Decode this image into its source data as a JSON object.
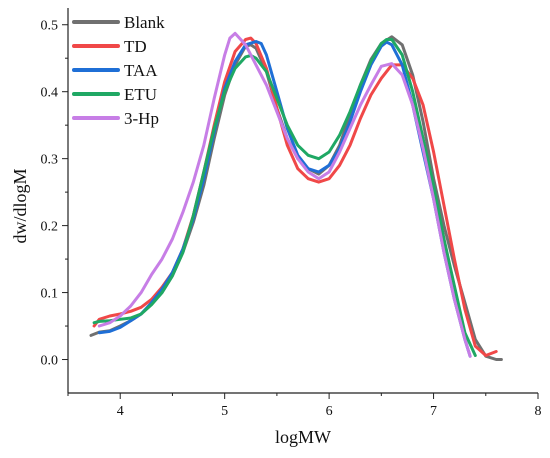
{
  "chart_data": {
    "type": "line",
    "xlabel": "logMW",
    "ylabel": "dw/dlogM",
    "xlim": [
      3.5,
      8.0
    ],
    "ylim": [
      -0.05,
      0.525
    ],
    "x_ticks": [
      4,
      5,
      6,
      7,
      8
    ],
    "y_ticks": [
      0.0,
      0.1,
      0.2,
      0.3,
      0.4,
      0.5
    ],
    "x_tick_labels": [
      "4",
      "5",
      "6",
      "7",
      "8"
    ],
    "y_tick_labels": [
      "0.0",
      "0.1",
      "0.2",
      "0.3",
      "0.4",
      "0.5"
    ],
    "grid": false,
    "legend_position": "top-left",
    "series": [
      {
        "name": "Blank",
        "color": "#707070",
        "x": [
          3.72,
          3.8,
          3.9,
          4.0,
          4.1,
          4.2,
          4.3,
          4.4,
          4.5,
          4.6,
          4.7,
          4.8,
          4.9,
          5.0,
          5.1,
          5.2,
          5.25,
          5.3,
          5.4,
          5.5,
          5.6,
          5.7,
          5.8,
          5.9,
          6.0,
          6.1,
          6.2,
          6.3,
          6.4,
          6.5,
          6.6,
          6.7,
          6.8,
          6.9,
          7.0,
          7.1,
          7.2,
          7.3,
          7.4,
          7.5,
          7.6,
          7.65
        ],
        "y": [
          0.036,
          0.041,
          0.043,
          0.05,
          0.058,
          0.068,
          0.083,
          0.1,
          0.125,
          0.16,
          0.205,
          0.26,
          0.33,
          0.395,
          0.44,
          0.468,
          0.47,
          0.465,
          0.43,
          0.375,
          0.33,
          0.3,
          0.285,
          0.277,
          0.29,
          0.32,
          0.365,
          0.41,
          0.448,
          0.472,
          0.482,
          0.47,
          0.425,
          0.355,
          0.27,
          0.2,
          0.14,
          0.085,
          0.03,
          0.005,
          0.0,
          0.0
        ]
      },
      {
        "name": "TD",
        "color": "#f04848",
        "x": [
          3.75,
          3.8,
          3.9,
          4.0,
          4.1,
          4.2,
          4.3,
          4.4,
          4.5,
          4.6,
          4.7,
          4.8,
          4.9,
          5.0,
          5.1,
          5.2,
          5.25,
          5.3,
          5.4,
          5.5,
          5.6,
          5.7,
          5.8,
          5.9,
          6.0,
          6.1,
          6.2,
          6.3,
          6.4,
          6.5,
          6.6,
          6.7,
          6.8,
          6.9,
          7.0,
          7.1,
          7.2,
          7.3,
          7.4,
          7.5,
          7.6
        ],
        "y": [
          0.05,
          0.06,
          0.065,
          0.068,
          0.072,
          0.078,
          0.09,
          0.108,
          0.13,
          0.165,
          0.215,
          0.28,
          0.35,
          0.415,
          0.46,
          0.478,
          0.48,
          0.472,
          0.435,
          0.375,
          0.32,
          0.285,
          0.27,
          0.265,
          0.27,
          0.29,
          0.32,
          0.36,
          0.395,
          0.42,
          0.44,
          0.44,
          0.42,
          0.38,
          0.31,
          0.23,
          0.15,
          0.075,
          0.02,
          0.006,
          0.012
        ]
      },
      {
        "name": "TAA",
        "color": "#1f6fd6",
        "x": [
          3.8,
          3.9,
          4.0,
          4.1,
          4.2,
          4.3,
          4.4,
          4.5,
          4.6,
          4.7,
          4.8,
          4.9,
          5.0,
          5.1,
          5.2,
          5.3,
          5.35,
          5.4,
          5.5,
          5.6,
          5.7,
          5.8,
          5.9,
          6.0,
          6.1,
          6.2,
          6.3,
          6.4,
          6.5,
          6.55,
          6.6,
          6.7,
          6.8,
          6.9,
          7.0,
          7.1,
          7.2,
          7.3,
          7.35
        ],
        "y": [
          0.04,
          0.042,
          0.048,
          0.058,
          0.068,
          0.085,
          0.105,
          0.13,
          0.165,
          0.21,
          0.27,
          0.34,
          0.405,
          0.445,
          0.47,
          0.475,
          0.472,
          0.455,
          0.4,
          0.345,
          0.305,
          0.285,
          0.28,
          0.29,
          0.315,
          0.355,
          0.4,
          0.44,
          0.468,
          0.474,
          0.47,
          0.44,
          0.38,
          0.31,
          0.24,
          0.16,
          0.09,
          0.03,
          0.005
        ]
      },
      {
        "name": "ETU",
        "color": "#1fa864",
        "x": [
          3.75,
          3.8,
          3.9,
          4.0,
          4.1,
          4.2,
          4.3,
          4.4,
          4.5,
          4.6,
          4.7,
          4.8,
          4.9,
          5.0,
          5.1,
          5.2,
          5.25,
          5.3,
          5.4,
          5.5,
          5.6,
          5.7,
          5.8,
          5.9,
          6.0,
          6.1,
          6.2,
          6.3,
          6.4,
          6.5,
          6.55,
          6.6,
          6.7,
          6.8,
          6.9,
          7.0,
          7.1,
          7.2,
          7.3,
          7.4
        ],
        "y": [
          0.055,
          0.057,
          0.058,
          0.06,
          0.062,
          0.068,
          0.082,
          0.1,
          0.125,
          0.16,
          0.215,
          0.28,
          0.345,
          0.4,
          0.435,
          0.452,
          0.454,
          0.45,
          0.43,
          0.39,
          0.35,
          0.32,
          0.305,
          0.3,
          0.31,
          0.335,
          0.37,
          0.41,
          0.445,
          0.472,
          0.478,
          0.478,
          0.455,
          0.4,
          0.33,
          0.26,
          0.18,
          0.11,
          0.04,
          0.006
        ]
      },
      {
        "name": "3-Hp",
        "color": "#c77ee6",
        "x": [
          3.8,
          3.9,
          4.0,
          4.1,
          4.2,
          4.3,
          4.4,
          4.5,
          4.6,
          4.7,
          4.8,
          4.9,
          5.0,
          5.05,
          5.1,
          5.2,
          5.3,
          5.4,
          5.5,
          5.6,
          5.7,
          5.8,
          5.9,
          6.0,
          6.1,
          6.2,
          6.3,
          6.4,
          6.5,
          6.6,
          6.7,
          6.8,
          6.9,
          7.0,
          7.1,
          7.2,
          7.3,
          7.35
        ],
        "y": [
          0.05,
          0.055,
          0.065,
          0.08,
          0.1,
          0.127,
          0.15,
          0.18,
          0.22,
          0.265,
          0.32,
          0.39,
          0.455,
          0.48,
          0.487,
          0.47,
          0.44,
          0.41,
          0.37,
          0.33,
          0.3,
          0.28,
          0.27,
          0.28,
          0.31,
          0.345,
          0.38,
          0.41,
          0.438,
          0.442,
          0.425,
          0.38,
          0.315,
          0.24,
          0.16,
          0.09,
          0.03,
          0.005
        ]
      }
    ]
  }
}
